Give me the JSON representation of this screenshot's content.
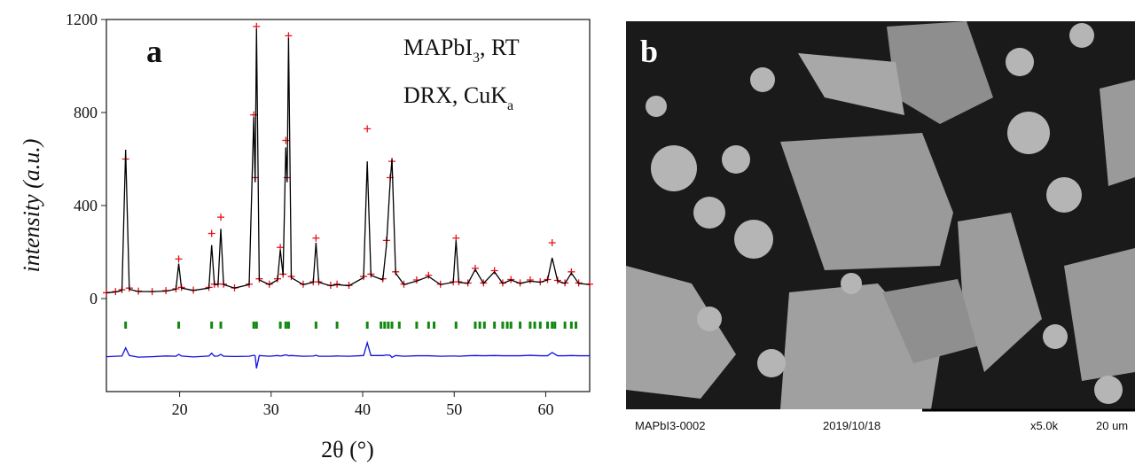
{
  "chart_data": {
    "type": "line",
    "panel_label": "a",
    "annotations": [
      [
        "MAPbI",
        "3",
        ", RT"
      ],
      [
        "DRX, CuK",
        "a"
      ]
    ],
    "x_label": "2θ (°)",
    "y_label": "intensity (a.u.)",
    "xlim": [
      12,
      64.8
    ],
    "xticks": [
      20,
      30,
      40,
      50,
      60
    ],
    "ylim": [
      -400,
      1200
    ],
    "yticks": [
      0,
      400,
      800,
      1200
    ],
    "x": [
      12,
      13,
      13.7,
      14.1,
      14.5,
      15.5,
      17,
      18.5,
      19.6,
      19.9,
      20.2,
      21.5,
      23.2,
      23.5,
      23.8,
      24.2,
      24.5,
      24.8,
      26,
      27.6,
      28.1,
      28.25,
      28.4,
      28.7,
      29.8,
      30.7,
      31.0,
      31.3,
      31.6,
      31.75,
      31.9,
      32.2,
      33.5,
      34.6,
      34.9,
      35.2,
      36.5,
      37.2,
      38.5,
      40.1,
      40.5,
      40.9,
      42.2,
      42.6,
      43.0,
      43.2,
      43.6,
      44.5,
      45.9,
      47.2,
      48.5,
      49.9,
      50.2,
      50.5,
      51.5,
      52.3,
      53.2,
      54.4,
      55.3,
      56.2,
      57.2,
      58.3,
      59.4,
      60.2,
      60.7,
      61.3,
      62.1,
      62.8,
      63.6,
      64.8
    ],
    "series": [
      {
        "color": "#e8101a",
        "marker": "+",
        "values": [
          25,
          30,
          38,
          600,
          45,
          32,
          30,
          34,
          42,
          170,
          48,
          36,
          48,
          280,
          62,
          63,
          350,
          62,
          46,
          62,
          790,
          520,
          1170,
          85,
          62,
          85,
          220,
          105,
          680,
          520,
          1130,
          95,
          62,
          72,
          260,
          72,
          57,
          62,
          57,
          95,
          730,
          105,
          85,
          250,
          520,
          590,
          115,
          62,
          80,
          100,
          62,
          72,
          260,
          72,
          67,
          130,
          67,
          120,
          67,
          82,
          67,
          80,
          72,
          82,
          240,
          78,
          67,
          115,
          67,
          62
        ]
      },
      {
        "color": "#000000",
        "values": [
          25,
          28,
          35,
          640,
          40,
          30,
          30,
          32,
          40,
          150,
          45,
          35,
          45,
          230,
          60,
          60,
          300,
          60,
          45,
          60,
          780,
          500,
          1160,
          80,
          60,
          80,
          210,
          100,
          650,
          500,
          1120,
          90,
          60,
          70,
          240,
          70,
          55,
          60,
          55,
          90,
          590,
          100,
          80,
          230,
          500,
          600,
          110,
          60,
          75,
          95,
          60,
          70,
          250,
          70,
          65,
          125,
          65,
          115,
          65,
          80,
          65,
          75,
          70,
          80,
          175,
          75,
          65,
          110,
          65,
          60
        ]
      },
      {
        "color": "#1010e0",
        "values": [
          -250,
          -248,
          -247,
          -212,
          -245,
          -252,
          -250,
          -247,
          -248,
          -240,
          -247,
          -251,
          -247,
          -235,
          -248,
          -247,
          -240,
          -248,
          -249,
          -248,
          -244,
          -246,
          -300,
          -245,
          -248,
          -245,
          -247,
          -245,
          -242,
          -244,
          -246,
          -245,
          -248,
          -247,
          -244,
          -248,
          -248,
          -247,
          -248,
          -245,
          -190,
          -245,
          -245,
          -243,
          -244,
          -253,
          -245,
          -248,
          -246,
          -246,
          -248,
          -247,
          -247,
          -248,
          -246,
          -245,
          -246,
          -245,
          -246,
          -246,
          -246,
          -244,
          -246,
          -246,
          -232,
          -246,
          -246,
          -245,
          -246,
          -246
        ]
      }
    ],
    "reflections": {
      "color": "#118811",
      "x": [
        14.1,
        19.9,
        23.5,
        24.5,
        28.1,
        28.4,
        31.0,
        31.6,
        31.9,
        34.9,
        37.2,
        40.5,
        42.0,
        42.4,
        42.8,
        43.2,
        44.0,
        45.9,
        47.2,
        47.8,
        50.2,
        52.3,
        52.8,
        53.3,
        54.4,
        55.3,
        55.8,
        56.2,
        57.2,
        58.3,
        58.8,
        59.4,
        60.2,
        60.7,
        61.0,
        62.1,
        62.8,
        63.3
      ]
    }
  },
  "image_panel": {
    "label": "b",
    "footer": {
      "sample": "MAPbI3-0002",
      "date": "2019/10/18",
      "magnification": "x5.0k",
      "scale": "20 um"
    }
  }
}
